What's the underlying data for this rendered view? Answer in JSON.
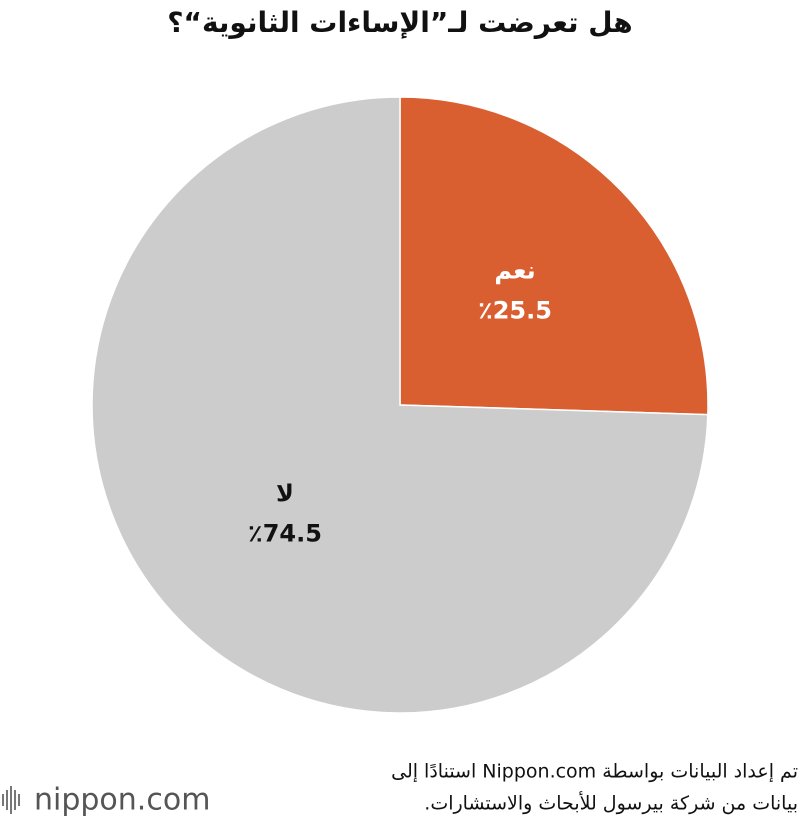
{
  "chart_data": {
    "type": "pie",
    "title": "هل تعرضت لـ”الإساءات الثانوية“؟",
    "categories": [
      "نعم",
      "لا"
    ],
    "values": [
      25.5,
      74.5
    ],
    "value_labels": [
      "٪25.5",
      "٪74.5"
    ],
    "colors": [
      "#d95f31",
      "#cccccc"
    ]
  },
  "source": {
    "lines": [
      "تم إعداد البيانات بواسطة Nippon.com استنادًا إلى",
      "بيانات من شركة بيرسول للأبحاث والاستشارات."
    ]
  },
  "logo": "nippon.com"
}
